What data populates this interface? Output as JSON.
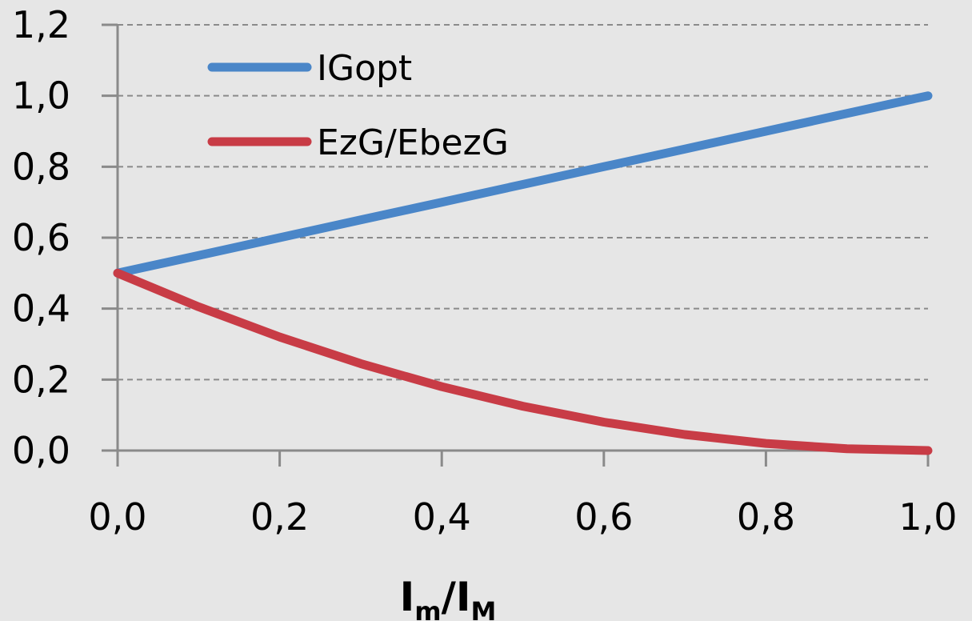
{
  "chart_data": {
    "type": "line",
    "x_ticks": [
      "0,0",
      "0,2",
      "0,4",
      "0,6",
      "0,8",
      "1,0"
    ],
    "y_ticks": [
      "0,0",
      "0,2",
      "0,4",
      "0,6",
      "0,8",
      "1,0",
      "1,2"
    ],
    "xlim": [
      0,
      1
    ],
    "ylim": [
      0,
      1.2
    ],
    "grid": "horizontal dashed",
    "legend_position": "top-left",
    "xlabel": {
      "main1": "I",
      "sub1": "m",
      "slash": "/",
      "main2": "I",
      "sub2": "M"
    },
    "series": [
      {
        "name": "IGopt",
        "color": "#4a86c8",
        "x": [
          0.0,
          0.1,
          0.2,
          0.3,
          0.4,
          0.5,
          0.6,
          0.7,
          0.8,
          0.9,
          1.0
        ],
        "y": [
          0.5,
          0.55,
          0.6,
          0.65,
          0.7,
          0.75,
          0.8,
          0.85,
          0.9,
          0.95,
          1.0
        ]
      },
      {
        "name": "EzG/EbezG",
        "color": "#c83c46",
        "x": [
          0.0,
          0.1,
          0.2,
          0.3,
          0.4,
          0.5,
          0.6,
          0.7,
          0.8,
          0.9,
          1.0
        ],
        "y": [
          0.5,
          0.405,
          0.32,
          0.245,
          0.18,
          0.125,
          0.08,
          0.045,
          0.02,
          0.005,
          0.0
        ]
      }
    ]
  }
}
